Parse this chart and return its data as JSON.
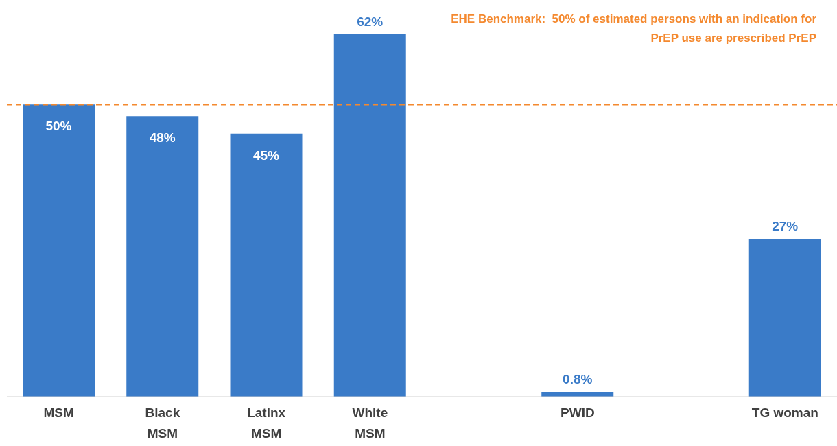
{
  "chart_data": {
    "type": "bar",
    "categories": [
      "MSM",
      "Black\nMSM",
      "Latinx\nMSM",
      "White\nMSM",
      null,
      "PWID",
      null,
      "TG woman"
    ],
    "values": [
      50,
      48,
      45,
      62,
      null,
      0.8,
      null,
      27
    ],
    "value_labels": [
      "50%",
      "48%",
      "45%",
      "62%",
      null,
      "0.8%",
      null,
      "27%"
    ],
    "color": "#3a7bc8",
    "ref_lines": [
      {
        "axis": "y",
        "value": 50,
        "label": "EHE Benchmark:  50% of estimated persons with an indication for PrEP use are prescribed PrEP",
        "color": "#f4892f",
        "line_style": "dashed"
      }
    ],
    "grid": false,
    "legend": false
  }
}
